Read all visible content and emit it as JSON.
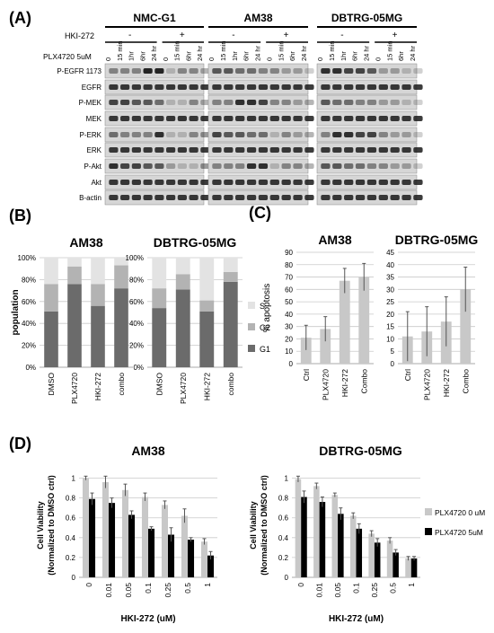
{
  "panels": {
    "A": "(A)",
    "B": "(B)",
    "C": "(C)",
    "D": "(D)"
  },
  "colors": {
    "s": "#e3e3e3",
    "g2": "#b3b3b3",
    "g1": "#6b6b6b",
    "apoptosis_bar": "#c8c8c8",
    "error": "#555555",
    "viab_0": "#c8c8c8",
    "viab_5": "#000000",
    "blot_bg": "#d6d6d6",
    "band": "#1a1a1a"
  },
  "western": {
    "cell_lines": [
      "NMC-G1",
      "AM38",
      "DBTRG-05MG"
    ],
    "hki_label": "HKI-272",
    "hki_minus": "-",
    "hki_plus": "+",
    "plx_label": "PLX4720 5uM",
    "lanes": [
      "0",
      "15 min",
      "1hr",
      "6hr",
      "24 hr",
      "0",
      "15 min",
      "6hr",
      "24 hr"
    ],
    "rows": [
      "P-EGFR 1173",
      "EGFR",
      "P-MEK",
      "MEK",
      "P-ERK",
      "ERK",
      "P-Akt",
      "Akt",
      "B-actin"
    ]
  },
  "chart_data": [
    {
      "id": "B-AM38",
      "type": "bar",
      "stacked": true,
      "title": "AM38",
      "ylabel": "population",
      "categories": [
        "DMSO",
        "PLX4720",
        "HKI-272",
        "combo"
      ],
      "series": [
        {
          "name": "G1",
          "values": [
            51,
            76,
            56,
            72
          ]
        },
        {
          "name": "G2",
          "values": [
            25,
            16,
            20,
            21
          ]
        },
        {
          "name": "S",
          "values": [
            24,
            8,
            24,
            7
          ]
        }
      ],
      "yticks": [
        "0%",
        "20%",
        "40%",
        "60%",
        "80%",
        "100%"
      ],
      "ylim": [
        0,
        100
      ],
      "legend": "right",
      "grid": true
    },
    {
      "id": "B-DBTRG",
      "type": "bar",
      "stacked": true,
      "title": "DBTRG-05MG",
      "categories": [
        "DMSO",
        "PLX4720",
        "HKI-272",
        "combo"
      ],
      "series": [
        {
          "name": "G1",
          "values": [
            54,
            71,
            51,
            78
          ]
        },
        {
          "name": "G2",
          "values": [
            18,
            14,
            10,
            9
          ]
        },
        {
          "name": "S",
          "values": [
            28,
            15,
            39,
            13
          ]
        }
      ],
      "yticks": [
        "0%",
        "20%",
        "40%",
        "60%",
        "80%",
        "100%"
      ],
      "ylim": [
        0,
        100
      ],
      "legend": "right",
      "grid": true
    },
    {
      "id": "C-AM38",
      "type": "bar",
      "title": "AM38",
      "ylabel": "% apoptosis",
      "categories": [
        "Ctrl",
        "PLX4720",
        "HKI-272",
        "Combo"
      ],
      "values": [
        21,
        28,
        67,
        70
      ],
      "errors": [
        10,
        10,
        10,
        11
      ],
      "yticks": [
        0,
        10,
        20,
        30,
        40,
        50,
        60,
        70,
        80,
        90
      ],
      "ylim": [
        0,
        90
      ],
      "grid": true
    },
    {
      "id": "C-DBTRG",
      "type": "bar",
      "title": "DBTRG-05MG",
      "categories": [
        "Ctrl",
        "PLX4720",
        "HKI-272",
        "Combo"
      ],
      "values": [
        11,
        13,
        17,
        30
      ],
      "errors": [
        10,
        10,
        10,
        9
      ],
      "yticks": [
        0,
        5,
        10,
        15,
        20,
        25,
        30,
        35,
        40,
        45
      ],
      "ylim": [
        0,
        45
      ],
      "grid": true
    },
    {
      "id": "D-AM38",
      "type": "bar",
      "title": "AM38",
      "ylabel": "Cell Viability\n(Normalized to DMSO ctrl)",
      "xlabel": "HKI-272 (uM)",
      "categories": [
        "0",
        "0.01",
        "0.05",
        "0.1",
        "0.25",
        "0.5",
        "1"
      ],
      "series": [
        {
          "name": "PLX4720 0 uM",
          "values": [
            1.0,
            0.96,
            0.88,
            0.81,
            0.73,
            0.62,
            0.36
          ],
          "errors": [
            0.02,
            0.06,
            0.06,
            0.04,
            0.04,
            0.07,
            0.03
          ]
        },
        {
          "name": "PLX4720 5uM",
          "values": [
            0.79,
            0.75,
            0.63,
            0.49,
            0.43,
            0.38,
            0.22
          ],
          "errors": [
            0.06,
            0.05,
            0.04,
            0.02,
            0.07,
            0.02,
            0.04
          ]
        }
      ],
      "yticks": [
        "0",
        "0.2",
        "0.4",
        "0.6",
        "0.8",
        "1"
      ],
      "ylim": [
        0,
        1.05
      ],
      "grid": true
    },
    {
      "id": "D-DBTRG",
      "type": "bar",
      "title": "DBTRG-05MG",
      "ylabel": "Cell Viability\n(Normalized to DMSO ctrl)",
      "xlabel": "HKI-272 (uM)",
      "categories": [
        "0",
        "0.01",
        "0.05",
        "0.1",
        "0.25",
        "0.5",
        "1"
      ],
      "series": [
        {
          "name": "PLX4720 0 uM",
          "values": [
            0.99,
            0.92,
            0.83,
            0.62,
            0.44,
            0.37,
            0.19
          ],
          "errors": [
            0.03,
            0.03,
            0.02,
            0.03,
            0.03,
            0.03,
            0.02
          ]
        },
        {
          "name": "PLX4720 5uM",
          "values": [
            0.81,
            0.76,
            0.64,
            0.49,
            0.35,
            0.25,
            0.19
          ],
          "errors": [
            0.06,
            0.05,
            0.06,
            0.05,
            0.04,
            0.03,
            0.02
          ]
        }
      ],
      "yticks": [
        "0",
        "0.2",
        "0.4",
        "0.6",
        "0.8",
        "1"
      ],
      "ylim": [
        0,
        1.05
      ],
      "legend": "right",
      "grid": true
    }
  ]
}
